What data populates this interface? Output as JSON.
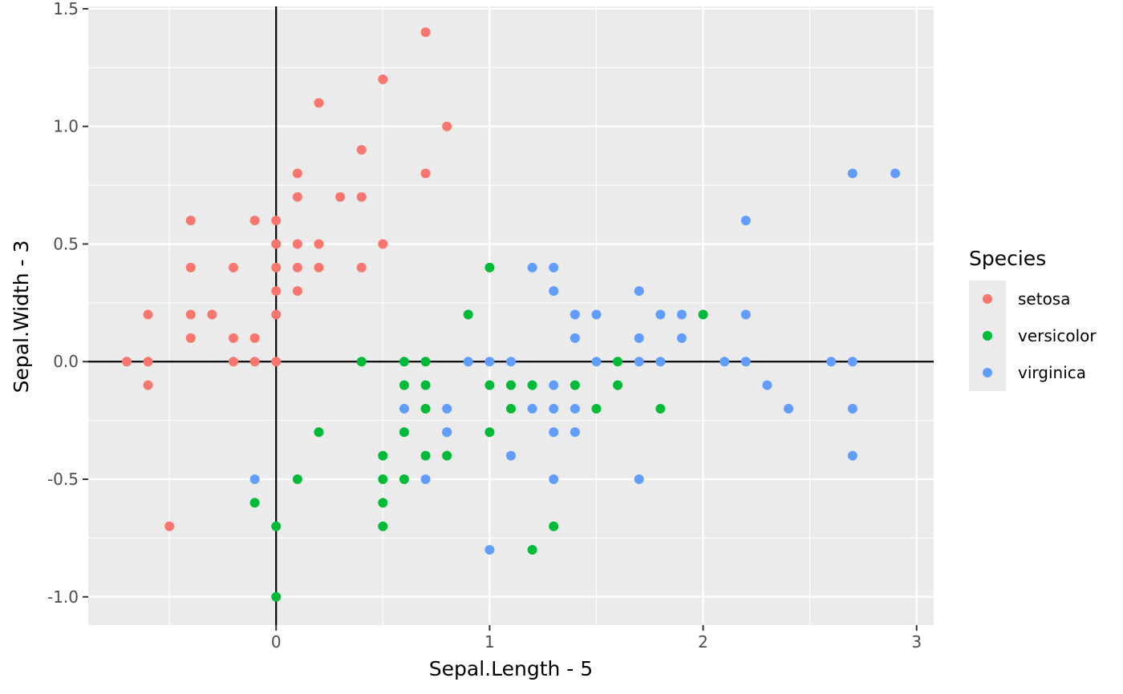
{
  "chart_data": {
    "type": "scatter",
    "title": "",
    "xlabel": "Sepal.Length - 5",
    "ylabel": "Sepal.Width - 3",
    "xlim": [
      -0.88,
      3.08
    ],
    "ylim": [
      -1.12,
      1.51
    ],
    "xticks": [
      0,
      1,
      2,
      3
    ],
    "xtick_labels": [
      "0",
      "1",
      "2",
      "3"
    ],
    "yticks": [
      -1.0,
      -0.5,
      0.0,
      0.5,
      1.0,
      1.5
    ],
    "ytick_labels": [
      "-1.0",
      "-0.5",
      "0.0",
      "0.5",
      "1.0",
      "1.5"
    ],
    "grid": true,
    "reference_lines": {
      "x": 0,
      "y": 0
    },
    "legend": {
      "title": "Species",
      "position": "right"
    },
    "colors": {
      "setosa": "#F8766D",
      "versicolor": "#00BA38",
      "virginica": "#619CFF",
      "panel": "#EBEBEB",
      "grid": "#FFFFFF"
    },
    "series": [
      {
        "name": "setosa",
        "points": [
          [
            0.7,
            1.4
          ],
          [
            0.5,
            1.2
          ],
          [
            0.2,
            1.1
          ],
          [
            0.8,
            1.0
          ],
          [
            0.4,
            0.9
          ],
          [
            0.1,
            0.8
          ],
          [
            0.7,
            0.8
          ],
          [
            0.1,
            0.7
          ],
          [
            0.3,
            0.7
          ],
          [
            0.4,
            0.7
          ],
          [
            -0.4,
            0.6
          ],
          [
            -0.1,
            0.6
          ],
          [
            0.0,
            0.6
          ],
          [
            0.0,
            0.5
          ],
          [
            0.1,
            0.5
          ],
          [
            0.2,
            0.5
          ],
          [
            0.5,
            0.5
          ],
          [
            -0.4,
            0.4
          ],
          [
            -0.2,
            0.4
          ],
          [
            0.0,
            0.4
          ],
          [
            0.1,
            0.4
          ],
          [
            0.2,
            0.4
          ],
          [
            0.4,
            0.4
          ],
          [
            0.0,
            0.3
          ],
          [
            0.1,
            0.3
          ],
          [
            -0.6,
            0.2
          ],
          [
            -0.4,
            0.2
          ],
          [
            -0.3,
            0.2
          ],
          [
            0.0,
            0.2
          ],
          [
            -0.4,
            0.1
          ],
          [
            -0.2,
            0.1
          ],
          [
            -0.1,
            0.1
          ],
          [
            -0.7,
            0.0
          ],
          [
            -0.6,
            0.0
          ],
          [
            -0.2,
            0.0
          ],
          [
            -0.1,
            0.0
          ],
          [
            0.0,
            0.0
          ],
          [
            -0.6,
            -0.1
          ],
          [
            -0.5,
            -0.7
          ]
        ]
      },
      {
        "name": "versicolor",
        "points": [
          [
            1.0,
            0.4
          ],
          [
            0.9,
            0.2
          ],
          [
            2.0,
            0.2
          ],
          [
            0.4,
            0.0
          ],
          [
            0.6,
            0.0
          ],
          [
            0.7,
            0.0
          ],
          [
            1.6,
            0.0
          ],
          [
            0.6,
            -0.1
          ],
          [
            0.7,
            -0.1
          ],
          [
            1.0,
            -0.1
          ],
          [
            1.1,
            -0.1
          ],
          [
            1.2,
            -0.1
          ],
          [
            1.4,
            -0.1
          ],
          [
            1.6,
            -0.1
          ],
          [
            0.7,
            -0.2
          ],
          [
            1.1,
            -0.2
          ],
          [
            1.5,
            -0.2
          ],
          [
            1.8,
            -0.2
          ],
          [
            0.2,
            -0.3
          ],
          [
            0.6,
            -0.3
          ],
          [
            0.8,
            -0.3
          ],
          [
            1.0,
            -0.3
          ],
          [
            0.5,
            -0.4
          ],
          [
            0.7,
            -0.4
          ],
          [
            0.8,
            -0.4
          ],
          [
            0.1,
            -0.5
          ],
          [
            0.5,
            -0.5
          ],
          [
            0.6,
            -0.5
          ],
          [
            -0.1,
            -0.6
          ],
          [
            0.5,
            -0.6
          ],
          [
            0.0,
            -0.7
          ],
          [
            0.5,
            -0.7
          ],
          [
            1.3,
            -0.7
          ],
          [
            1.2,
            -0.8
          ],
          [
            0.0,
            -1.0
          ]
        ]
      },
      {
        "name": "virginica",
        "points": [
          [
            2.7,
            0.8
          ],
          [
            2.9,
            0.8
          ],
          [
            2.2,
            0.6
          ],
          [
            1.2,
            0.4
          ],
          [
            1.3,
            0.4
          ],
          [
            1.3,
            0.3
          ],
          [
            1.7,
            0.3
          ],
          [
            1.4,
            0.2
          ],
          [
            1.5,
            0.2
          ],
          [
            1.8,
            0.2
          ],
          [
            1.9,
            0.2
          ],
          [
            2.2,
            0.2
          ],
          [
            1.4,
            0.1
          ],
          [
            1.7,
            0.1
          ],
          [
            1.9,
            0.1
          ],
          [
            0.9,
            0.0
          ],
          [
            1.0,
            0.0
          ],
          [
            1.1,
            0.0
          ],
          [
            1.5,
            0.0
          ],
          [
            1.7,
            0.0
          ],
          [
            1.8,
            0.0
          ],
          [
            2.1,
            0.0
          ],
          [
            2.2,
            0.0
          ],
          [
            2.6,
            0.0
          ],
          [
            2.7,
            0.0
          ],
          [
            1.3,
            -0.1
          ],
          [
            2.3,
            -0.1
          ],
          [
            0.6,
            -0.2
          ],
          [
            0.8,
            -0.2
          ],
          [
            1.2,
            -0.2
          ],
          [
            1.3,
            -0.2
          ],
          [
            1.4,
            -0.2
          ],
          [
            2.4,
            -0.2
          ],
          [
            2.7,
            -0.2
          ],
          [
            0.8,
            -0.3
          ],
          [
            1.3,
            -0.3
          ],
          [
            1.4,
            -0.3
          ],
          [
            1.1,
            -0.4
          ],
          [
            2.7,
            -0.4
          ],
          [
            -0.1,
            -0.5
          ],
          [
            0.7,
            -0.5
          ],
          [
            1.3,
            -0.5
          ],
          [
            1.7,
            -0.5
          ],
          [
            1.0,
            -0.8
          ]
        ]
      }
    ]
  }
}
